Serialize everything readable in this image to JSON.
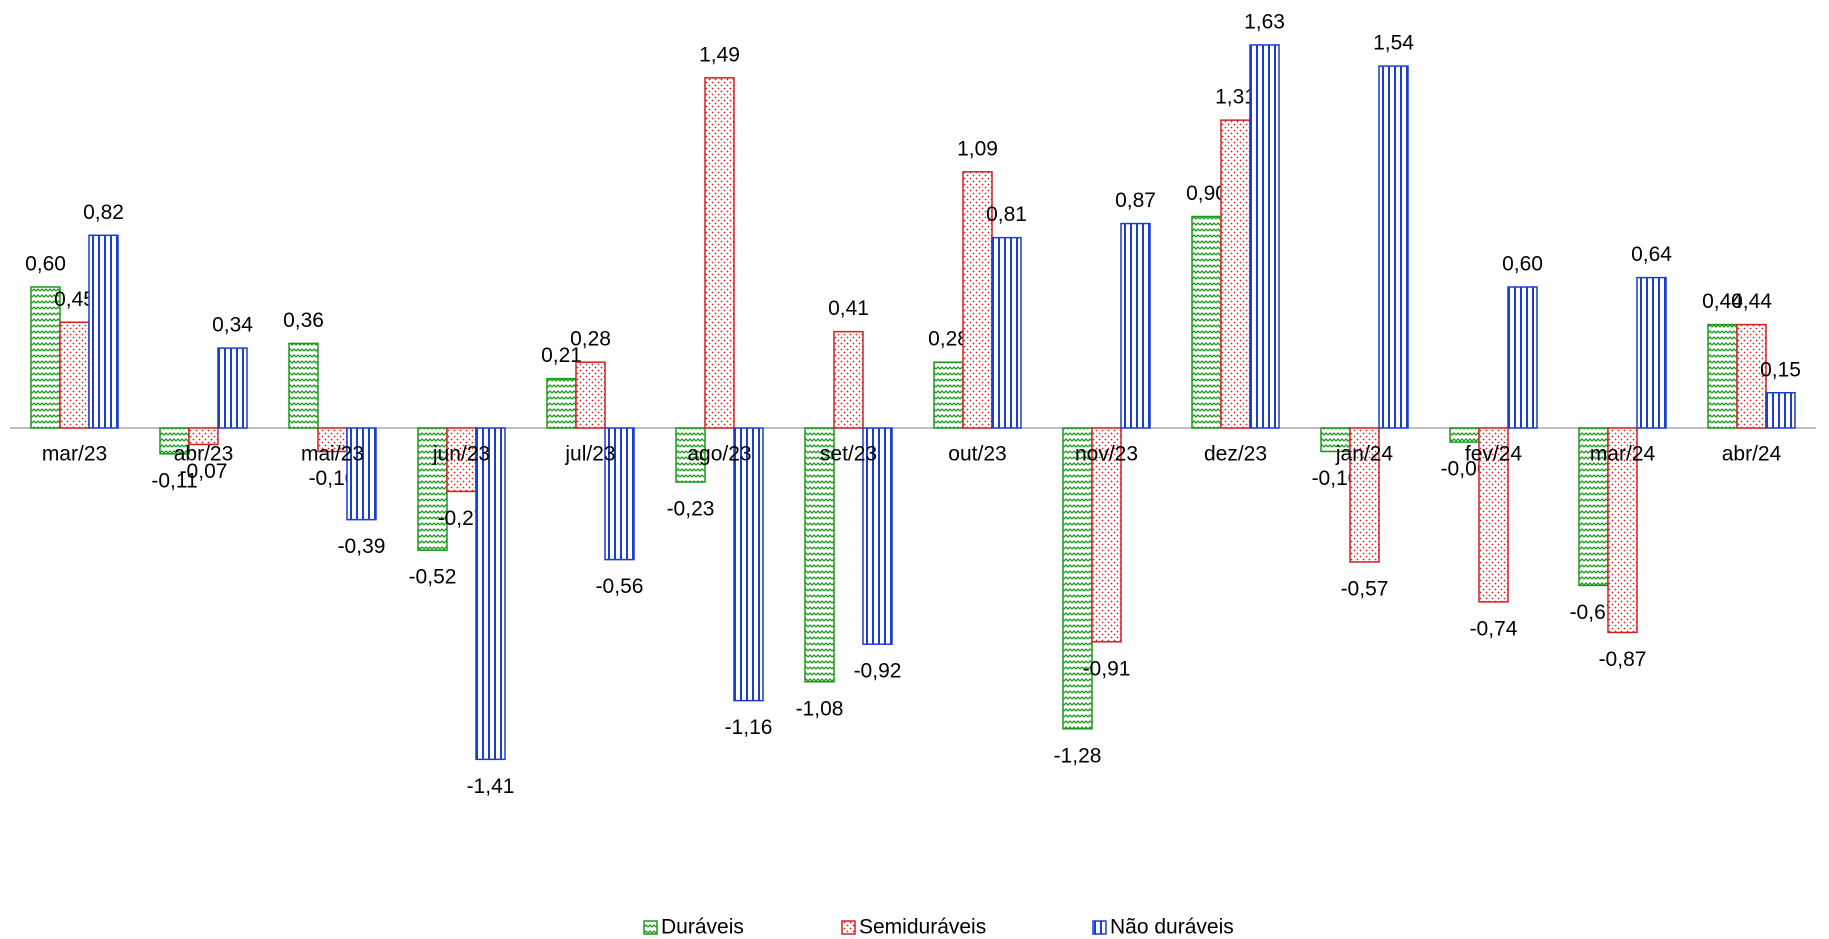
{
  "chart_data": {
    "type": "bar",
    "categories": [
      "mar/23",
      "abr/23",
      "mai/23",
      "jun/23",
      "jul/23",
      "ago/23",
      "set/23",
      "out/23",
      "nov/23",
      "dez/23",
      "jan/24",
      "fev/24",
      "mar/24",
      "abr/24"
    ],
    "series": [
      {
        "name": "Duráveis",
        "color": "#1a9a1a",
        "values": [
          0.6,
          -0.11,
          0.36,
          -0.52,
          0.21,
          -0.23,
          -1.08,
          0.28,
          -1.28,
          0.9,
          -0.1,
          -0.06,
          -0.67,
          0.44
        ],
        "value_labels": [
          "0,60",
          "-0,11",
          "0,36",
          "-0,52",
          "0,21",
          "-0,23",
          "-1,08",
          "0,28",
          "-1,28",
          "0,90",
          "-0,10",
          "-0,06",
          "-0,67",
          "0,44"
        ]
      },
      {
        "name": "Semiduráveis",
        "color": "#d42020",
        "values": [
          0.45,
          -0.07,
          -0.1,
          -0.27,
          0.28,
          1.49,
          0.41,
          1.09,
          -0.91,
          1.31,
          -0.57,
          -0.74,
          -0.87,
          0.44
        ],
        "value_labels": [
          "0,45",
          "-0,07",
          "-0,10",
          "-0,27",
          "0,28",
          "1,49",
          "0,41",
          "1,09",
          "-0,91",
          "1,31",
          "-0,57",
          "-0,74",
          "-0,87",
          "0,44"
        ]
      },
      {
        "name": "Não duráveis",
        "color": "#1a3fd0",
        "values": [
          0.82,
          0.34,
          -0.39,
          -1.41,
          -0.56,
          -1.16,
          -0.92,
          0.81,
          0.87,
          1.63,
          1.54,
          0.6,
          0.64,
          0.15
        ],
        "value_labels": [
          "0,82",
          "0,34",
          "-0,39",
          "-1,41",
          "-0,56",
          "-1,16",
          "-0,92",
          "0,81",
          "0,87",
          "1,63",
          "1,54",
          "0,60",
          "0,64",
          "0,15"
        ]
      }
    ],
    "ylim": [
      -1.6,
      1.8
    ]
  }
}
